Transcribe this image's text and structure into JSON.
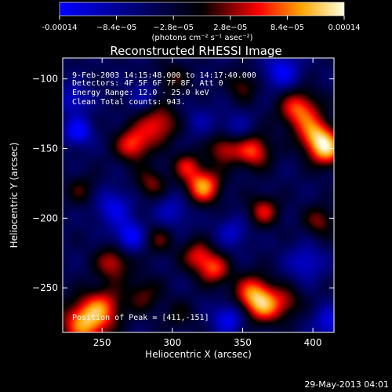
{
  "chart_data": {
    "type": "heatmap",
    "title": "Reconstructed RHESSI Image",
    "xlabel": "Heliocentric X (arcsec)",
    "ylabel": "Heliocentric Y (arcsec)",
    "xlim": [
      222,
      415
    ],
    "ylim": [
      -282,
      -85
    ],
    "x_ticks": [
      250,
      300,
      350,
      400
    ],
    "y_ticks": [
      -100,
      -150,
      -200,
      -250
    ],
    "colorbar": {
      "label": "(photons cm⁻² s⁻¹ asec⁻²)",
      "range": [
        -0.00014,
        0.00014
      ],
      "ticks": [
        "-0.00014",
        "−8.4e−05",
        "−2.8e−05",
        "2.8e−05",
        "8.4e−05",
        "0.00014"
      ],
      "colormap": [
        "#0000ff",
        "#000000",
        "#ff0000",
        "#ffa500",
        "#ffffe0"
      ]
    },
    "annotations": [
      "9-Feb-2003 14:15:48.000 to 14:17:40.000",
      "Detectors: 4F 5F 6F 7F 8F, Att 0",
      "Energy Range: 12.0 - 25.0 keV",
      "Clean     Total counts: 943.",
      "Position of Peak = [411,-151]"
    ],
    "peak": [
      411,
      -151
    ],
    "sources": [
      {
        "x": 238,
        "y": -275,
        "v": 0.00014,
        "s": 12
      },
      {
        "x": 252,
        "y": -263,
        "v": 8e-05,
        "s": 10
      },
      {
        "x": 258,
        "y": -232,
        "v": 9e-05,
        "s": 9
      },
      {
        "x": 272,
        "y": -147,
        "v": 0.00011,
        "s": 9
      },
      {
        "x": 290,
        "y": -132,
        "v": 0.0001,
        "s": 10
      },
      {
        "x": 322,
        "y": -177,
        "v": 0.00014,
        "s": 9
      },
      {
        "x": 310,
        "y": -162,
        "v": 8e-05,
        "s": 7
      },
      {
        "x": 337,
        "y": -150,
        "v": 9e-05,
        "s": 8
      },
      {
        "x": 285,
        "y": -175,
        "v": 7e-05,
        "s": 8
      },
      {
        "x": 290,
        "y": -215,
        "v": 6e-05,
        "s": 8
      },
      {
        "x": 318,
        "y": -227,
        "v": 9e-05,
        "s": 8
      },
      {
        "x": 330,
        "y": -237,
        "v": 0.0001,
        "s": 8
      },
      {
        "x": 358,
        "y": -152,
        "v": 0.00011,
        "s": 9
      },
      {
        "x": 365,
        "y": -195,
        "v": 9e-05,
        "s": 8
      },
      {
        "x": 358,
        "y": -255,
        "v": 0.00013,
        "s": 10
      },
      {
        "x": 367,
        "y": -265,
        "v": 8e-05,
        "s": 9
      },
      {
        "x": 390,
        "y": -122,
        "v": 0.00012,
        "s": 10
      },
      {
        "x": 402,
        "y": -140,
        "v": 0.00011,
        "s": 9
      },
      {
        "x": 410,
        "y": -151,
        "v": 0.00013,
        "s": 9
      },
      {
        "x": 405,
        "y": -202,
        "v": 7e-05,
        "s": 8
      },
      {
        "x": 382,
        "y": -260,
        "v": 6e-05,
        "s": 8
      },
      {
        "x": 280,
        "y": -255,
        "v": 6e-05,
        "s": 9
      },
      {
        "x": 235,
        "y": -180,
        "v": 5e-05,
        "s": 8
      },
      {
        "x": 300,
        "y": -100,
        "v": 5e-05,
        "s": 9
      },
      {
        "x": 350,
        "y": -105,
        "v": 6e-05,
        "s": 8
      },
      {
        "x": 305,
        "y": -270,
        "v": 4e-05,
        "s": 8
      },
      {
        "x": 230,
        "y": -115,
        "v": -7e-05,
        "s": 8
      },
      {
        "x": 233,
        "y": -138,
        "v": -0.0001,
        "s": 7
      },
      {
        "x": 258,
        "y": -192,
        "v": -8e-05,
        "s": 9
      },
      {
        "x": 300,
        "y": -195,
        "v": -6e-05,
        "s": 9
      },
      {
        "x": 270,
        "y": -213,
        "v": -0.0001,
        "s": 8
      },
      {
        "x": 343,
        "y": -210,
        "v": -6e-05,
        "s": 8
      },
      {
        "x": 395,
        "y": -232,
        "v": -7e-05,
        "s": 9
      },
      {
        "x": 340,
        "y": -272,
        "v": -9e-05,
        "s": 8
      },
      {
        "x": 412,
        "y": -275,
        "v": -8e-05,
        "s": 8
      },
      {
        "x": 378,
        "y": -95,
        "v": -9e-05,
        "s": 9
      },
      {
        "x": 345,
        "y": -135,
        "v": -5e-05,
        "s": 8
      },
      {
        "x": 280,
        "y": -112,
        "v": -5e-05,
        "s": 8
      },
      {
        "x": 320,
        "y": -130,
        "v": -4e-05,
        "s": 8
      }
    ]
  },
  "footer": {
    "date": "29-May-2013 04:01"
  }
}
